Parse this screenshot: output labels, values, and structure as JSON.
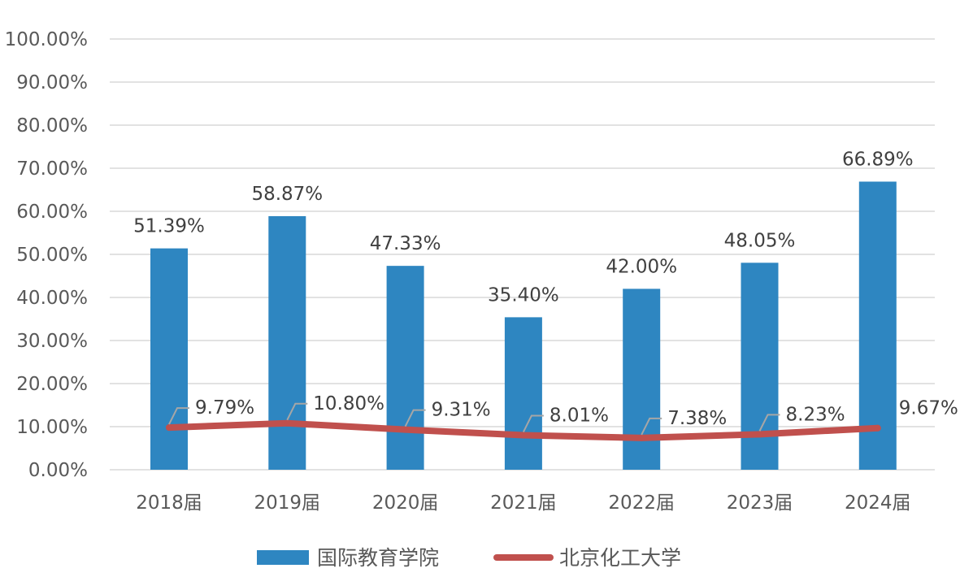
{
  "chart_data": {
    "type": "bar",
    "categories": [
      "2018届",
      "2019届",
      "2020届",
      "2021届",
      "2022届",
      "2023届",
      "2024届"
    ],
    "ylim": [
      0,
      100
    ],
    "y_ticks": [
      "0.00%",
      "10.00%",
      "20.00%",
      "30.00%",
      "40.00%",
      "50.00%",
      "60.00%",
      "70.00%",
      "80.00%",
      "90.00%",
      "100.00%"
    ],
    "grid": true,
    "legend_position": "bottom",
    "series": [
      {
        "name": "国际教育学院",
        "type": "bar",
        "color": "#2e86c1",
        "values": [
          51.39,
          58.87,
          47.33,
          35.4,
          42.0,
          48.05,
          66.89
        ],
        "labels": [
          "51.39%",
          "58.87%",
          "47.33%",
          "35.40%",
          "42.00%",
          "48.05%",
          "66.89%"
        ]
      },
      {
        "name": "北京化工大学",
        "type": "line",
        "color": "#c0504d",
        "values": [
          9.79,
          10.8,
          9.31,
          8.01,
          7.38,
          8.23,
          9.67
        ],
        "labels": [
          "9.79%",
          "10.80%",
          "9.31%",
          "8.01%",
          "7.38%",
          "8.23%",
          "9.67%"
        ]
      }
    ]
  }
}
